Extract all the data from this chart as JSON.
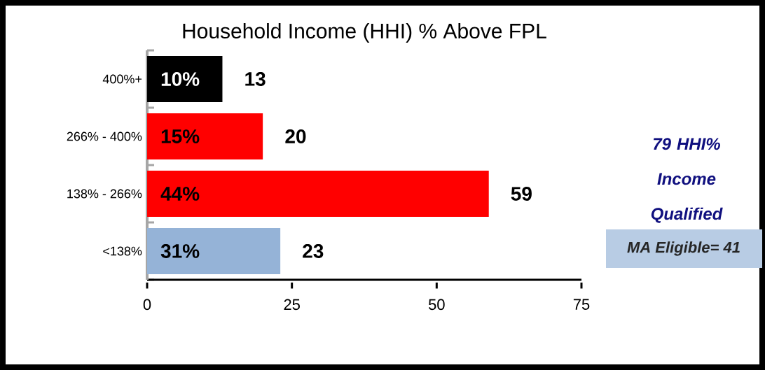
{
  "chart_data": {
    "type": "bar",
    "orientation": "horizontal",
    "title": "Household Income (HHI) % Above FPL",
    "categories": [
      "400%+",
      "266% - 400%",
      "138% - 266%",
      "<138%"
    ],
    "values": [
      13,
      20,
      59,
      23
    ],
    "colors": [
      "#000000",
      "#ff0000",
      "#ff0000",
      "#95b3d7"
    ],
    "value_labels": [
      "13",
      "20",
      "59",
      "23"
    ],
    "xlim": [
      0,
      75
    ],
    "xticks": [
      0,
      25,
      50,
      75
    ],
    "grid": false,
    "annotations": [
      "79 HHI% Income Qualified",
      "MA Eligible= 41",
      "10%",
      "15%",
      "44%",
      "31%"
    ]
  }
}
